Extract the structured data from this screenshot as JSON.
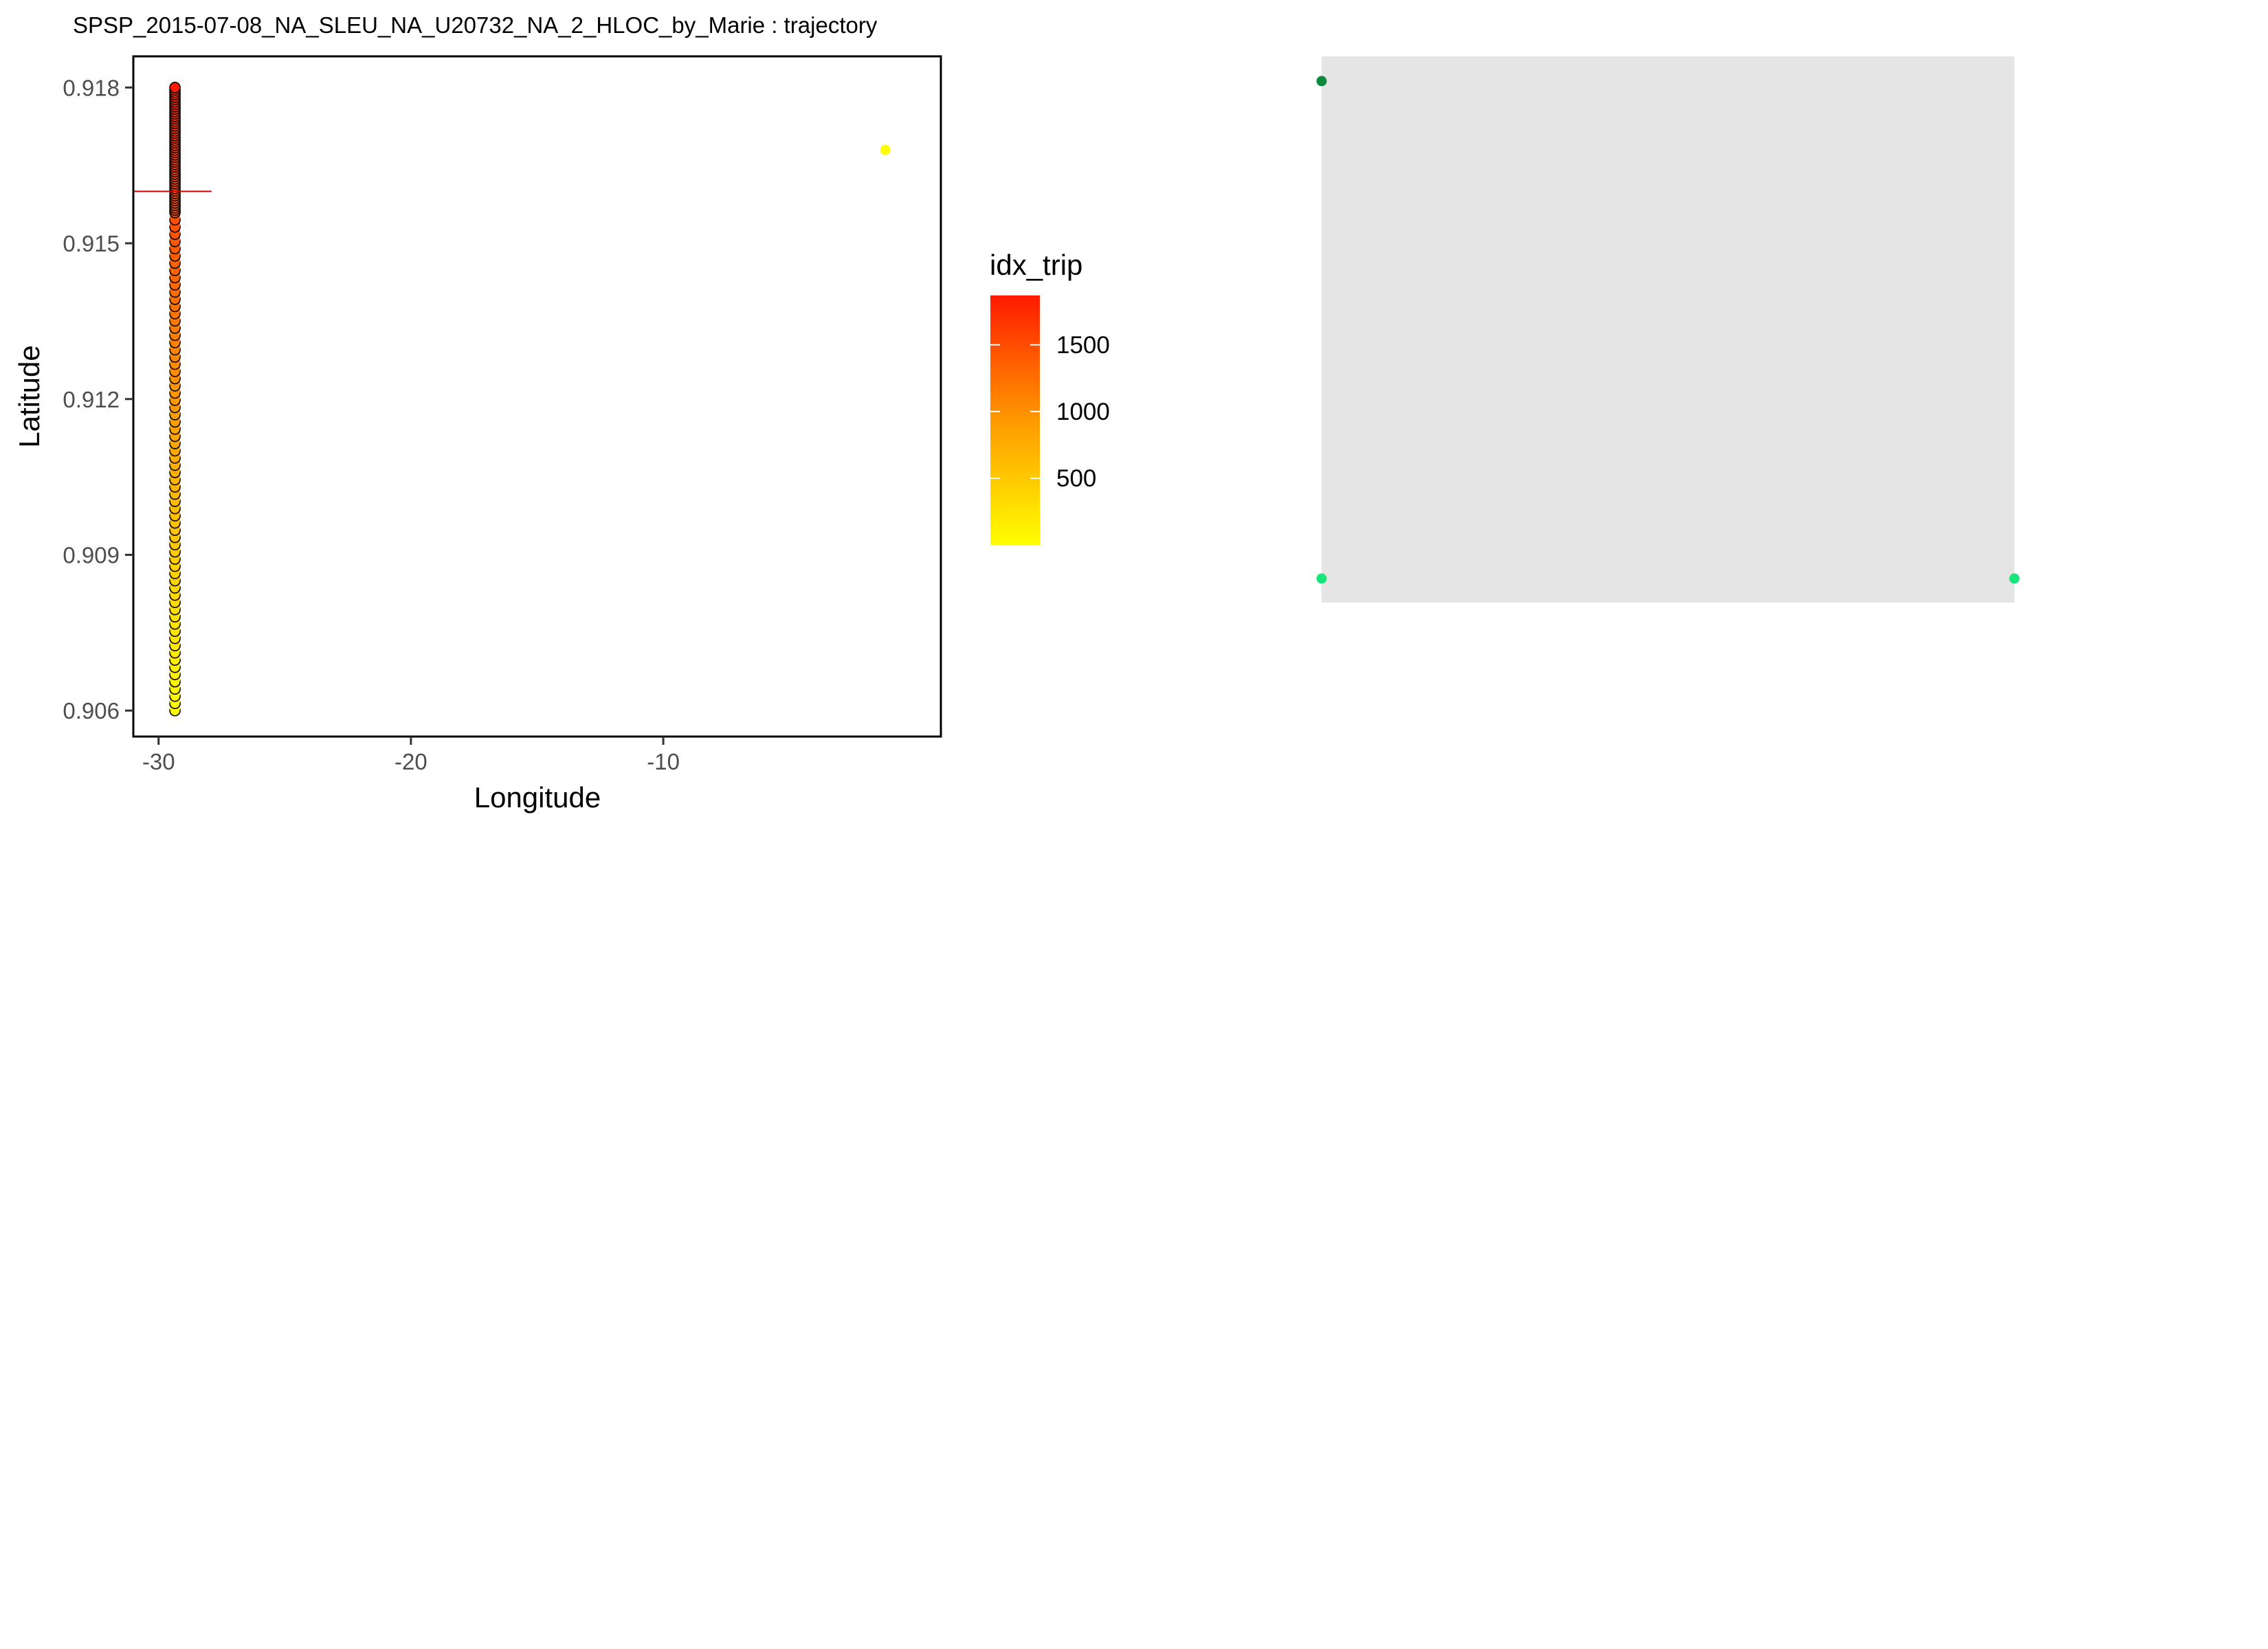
{
  "chart_data": [
    {
      "type": "scatter",
      "title": "SPSP_2015-07-08_NA_SLEU_NA_U20732_NA_2_HLOC_by_Marie : trajectory",
      "xlabel": "Longitude",
      "ylabel": "Latitude",
      "xlim": [
        -31,
        1
      ],
      "ylim": [
        0.9055,
        0.9186
      ],
      "x_ticks": [
        -30,
        -20,
        -10
      ],
      "x_tick_labels": [
        "-30",
        "-20",
        "-10"
      ],
      "y_ticks": [
        0.906,
        0.909,
        0.912,
        0.915,
        0.918
      ],
      "y_tick_labels": [
        "0.906",
        "0.909",
        "0.912",
        "0.915",
        "0.918"
      ],
      "grid": false,
      "color_scale": {
        "name": "idx_trip",
        "min": 1,
        "max": 1870,
        "low_color": "#ffff00",
        "mid_color": "#ff9900",
        "high_color": "#ff1a00",
        "ticks": [
          500,
          1000,
          1500
        ],
        "tick_labels": [
          "500",
          "1000",
          "1500"
        ]
      },
      "trajectory": {
        "longitude": -29.35,
        "lat_start": 0.906,
        "lat_end": 0.918,
        "idx_start": 1,
        "idx_end": 1870,
        "count": 1870
      },
      "points": [
        {
          "x": -1.2,
          "y": 0.9168,
          "idx": 1
        }
      ],
      "reference_line": {
        "x0": -31,
        "x1": -27.9,
        "y": 0.916,
        "color": "#cc0000"
      }
    },
    {
      "type": "scatter",
      "title": "",
      "background": "#e5e5e5",
      "xlim": [
        0,
        1
      ],
      "ylim": [
        0,
        1
      ],
      "points": [
        {
          "x": 0,
          "y": 1,
          "color": "#0a8a3c"
        },
        {
          "x": 0,
          "y": 0,
          "color": "#19e67a"
        },
        {
          "x": 1,
          "y": 0,
          "color": "#19e67a"
        }
      ]
    }
  ]
}
